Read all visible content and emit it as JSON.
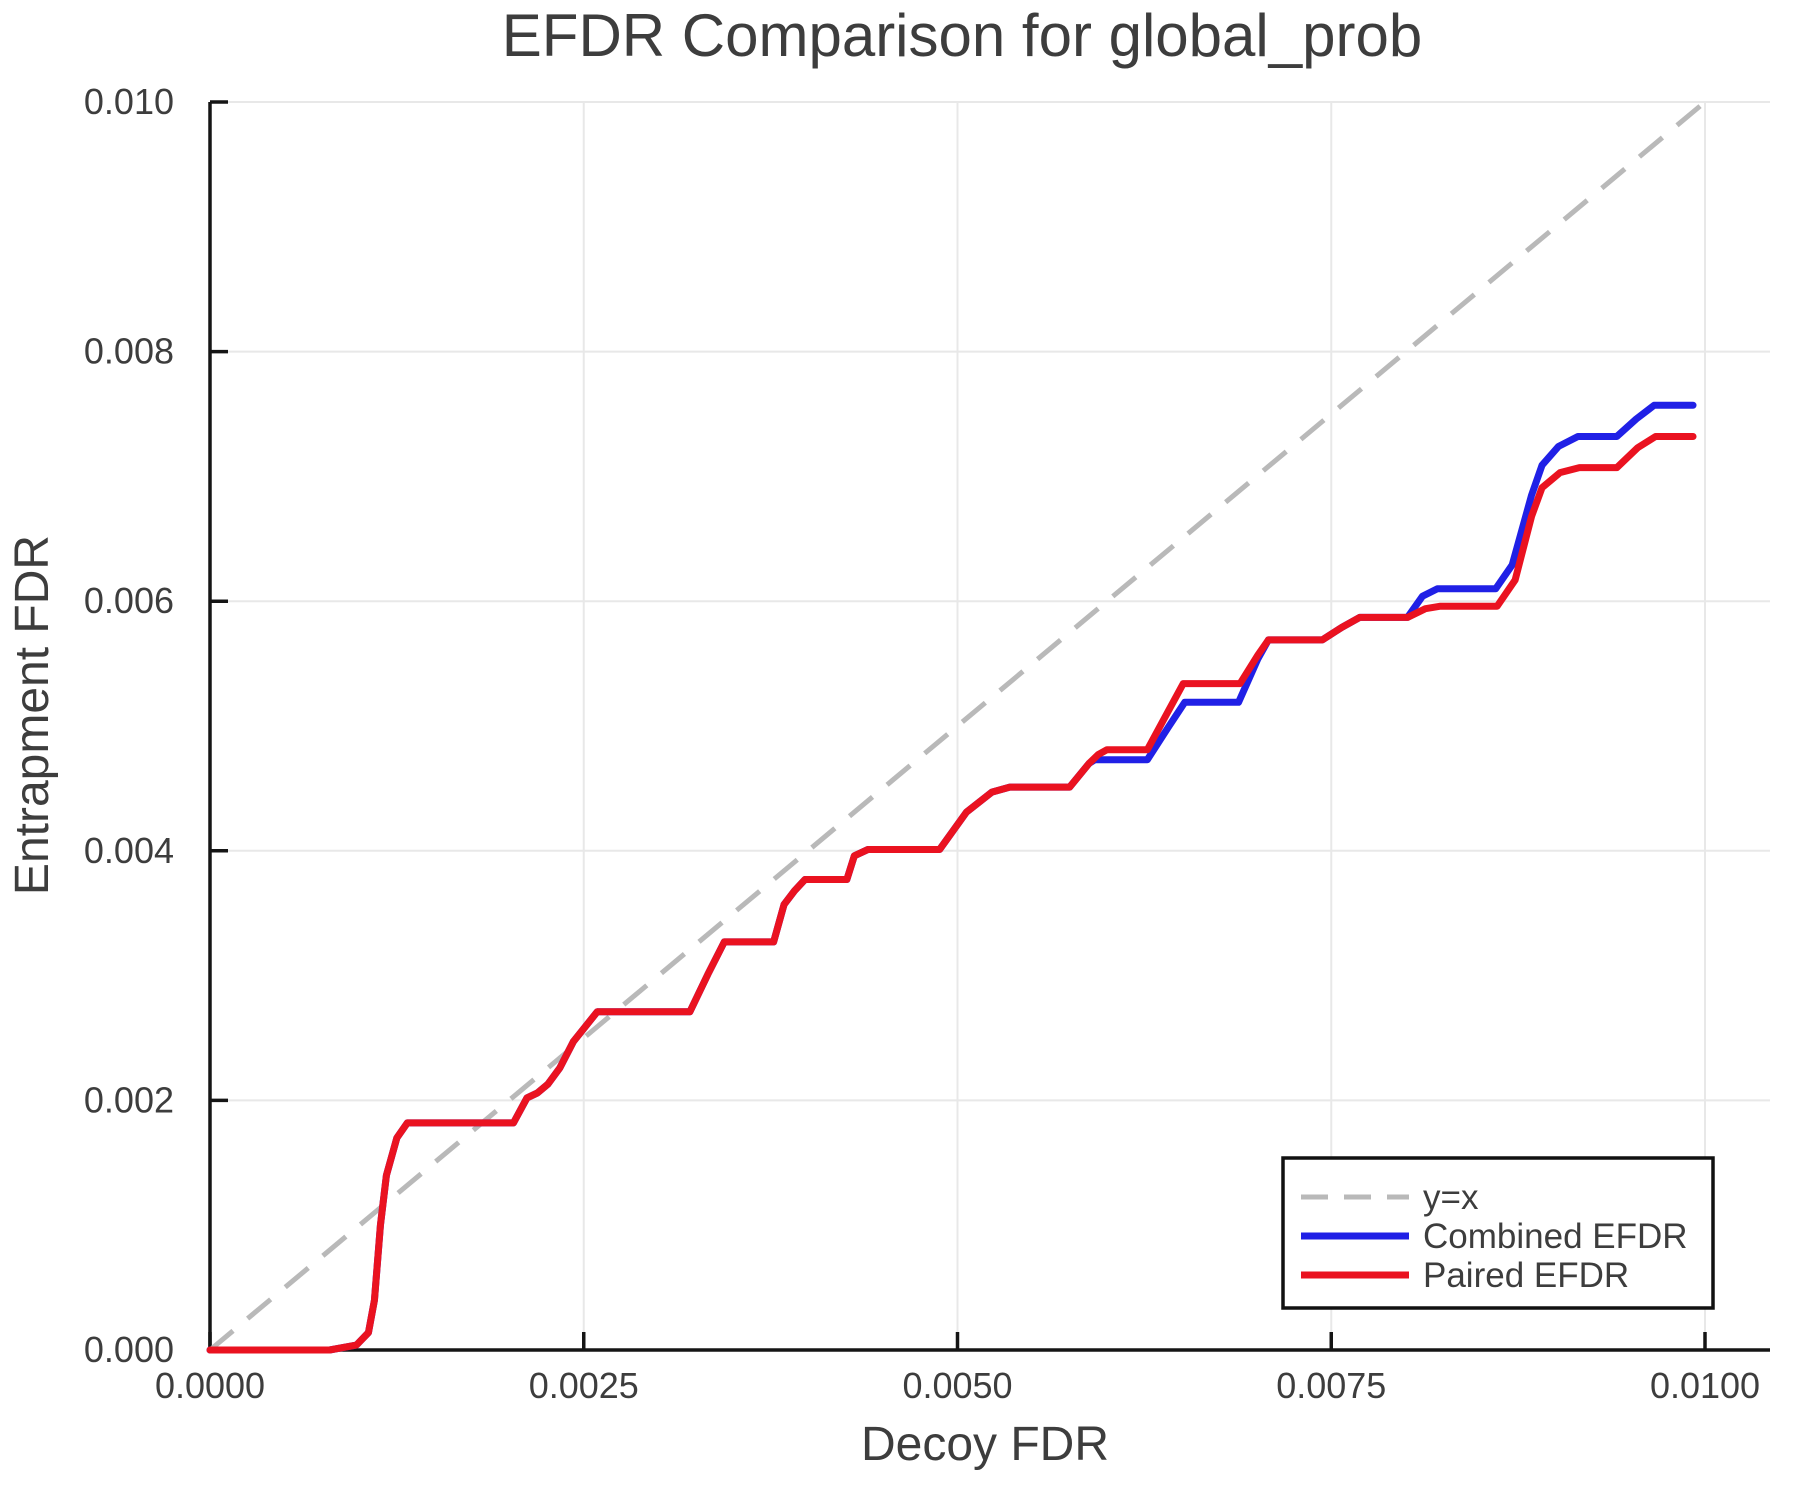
{
  "chart_data": {
    "type": "line",
    "title": "EFDR Comparison for global_prob",
    "xlabel": "Decoy FDR",
    "ylabel": "Entrapment FDR",
    "xlim": [
      0.0,
      0.01
    ],
    "ylim": [
      0.0,
      0.01
    ],
    "grid": true,
    "grid_color": "#e8e8e8",
    "spine_color": "#151515",
    "text_color": "#3d3d3d",
    "xticks": [
      {
        "value": 0.0,
        "label": "0.0000"
      },
      {
        "value": 0.0025,
        "label": "0.0025"
      },
      {
        "value": 0.005,
        "label": "0.0050"
      },
      {
        "value": 0.0075,
        "label": "0.0075"
      },
      {
        "value": 0.01,
        "label": "0.0100"
      }
    ],
    "yticks": [
      {
        "value": 0.0,
        "label": "0.000"
      },
      {
        "value": 0.002,
        "label": "0.002"
      },
      {
        "value": 0.004,
        "label": "0.004"
      },
      {
        "value": 0.006,
        "label": "0.006"
      },
      {
        "value": 0.008,
        "label": "0.008"
      },
      {
        "value": 0.01,
        "label": "0.010"
      }
    ],
    "legend": {
      "position": "lower right",
      "entries": [
        {
          "series": "identity",
          "label": "y=x"
        },
        {
          "series": "combined",
          "label": "Combined EFDR"
        },
        {
          "series": "paired",
          "label": "Paired EFDR"
        }
      ]
    },
    "series": [
      {
        "name": "identity",
        "label": "y=x",
        "style": "dashed",
        "color": "#b9b9b9",
        "width": 5,
        "points": [
          [
            0.0,
            0.0
          ],
          [
            0.01,
            0.01
          ]
        ]
      },
      {
        "name": "combined",
        "label": "Combined EFDR",
        "style": "solid",
        "color": "#2020e6",
        "width": 7,
        "points": [
          [
            0.0,
            0.0
          ],
          [
            0.0008,
            0.0
          ],
          [
            0.00098,
            4e-05
          ],
          [
            0.00106,
            0.00014
          ],
          [
            0.0011,
            0.0004
          ],
          [
            0.00114,
            0.001
          ],
          [
            0.00118,
            0.0014
          ],
          [
            0.00125,
            0.0017
          ],
          [
            0.00132,
            0.00182
          ],
          [
            0.00203,
            0.00182
          ],
          [
            0.00212,
            0.00202
          ],
          [
            0.00219,
            0.00206
          ],
          [
            0.00226,
            0.00213
          ],
          [
            0.00234,
            0.00226
          ],
          [
            0.00243,
            0.00247
          ],
          [
            0.00259,
            0.00271
          ],
          [
            0.00321,
            0.00271
          ],
          [
            0.00333,
            0.00301
          ],
          [
            0.00344,
            0.00327
          ],
          [
            0.00377,
            0.00327
          ],
          [
            0.00384,
            0.00357
          ],
          [
            0.00391,
            0.00368
          ],
          [
            0.00398,
            0.00377
          ],
          [
            0.00426,
            0.00377
          ],
          [
            0.00431,
            0.00396
          ],
          [
            0.0044,
            0.00401
          ],
          [
            0.00488,
            0.00401
          ],
          [
            0.00506,
            0.00431
          ],
          [
            0.00523,
            0.00447
          ],
          [
            0.00535,
            0.00451
          ],
          [
            0.00575,
            0.00451
          ],
          [
            0.00588,
            0.0047
          ],
          [
            0.00592,
            0.00473
          ],
          [
            0.00627,
            0.00473
          ],
          [
            0.00641,
            0.00499
          ],
          [
            0.00652,
            0.00519
          ],
          [
            0.00688,
            0.00519
          ],
          [
            0.00701,
            0.00554
          ],
          [
            0.00708,
            0.00569
          ],
          [
            0.00744,
            0.00569
          ],
          [
            0.00757,
            0.00579
          ],
          [
            0.00769,
            0.00587
          ],
          [
            0.00801,
            0.00587
          ],
          [
            0.00811,
            0.00604
          ],
          [
            0.00821,
            0.0061
          ],
          [
            0.0086,
            0.0061
          ],
          [
            0.00871,
            0.00629
          ],
          [
            0.00884,
            0.00685
          ],
          [
            0.00891,
            0.00709
          ],
          [
            0.00902,
            0.00724
          ],
          [
            0.00915,
            0.00732
          ],
          [
            0.00941,
            0.00732
          ],
          [
            0.00954,
            0.00746
          ],
          [
            0.00966,
            0.00757
          ],
          [
            0.00992,
            0.00757
          ]
        ]
      },
      {
        "name": "paired",
        "label": "Paired EFDR",
        "style": "solid",
        "color": "#ea1220",
        "width": 7,
        "points": [
          [
            0.0,
            0.0
          ],
          [
            0.0008,
            0.0
          ],
          [
            0.00098,
            4e-05
          ],
          [
            0.00106,
            0.00014
          ],
          [
            0.0011,
            0.0004
          ],
          [
            0.00114,
            0.001
          ],
          [
            0.00118,
            0.0014
          ],
          [
            0.00125,
            0.0017
          ],
          [
            0.00132,
            0.00182
          ],
          [
            0.00203,
            0.00182
          ],
          [
            0.00212,
            0.00202
          ],
          [
            0.00219,
            0.00206
          ],
          [
            0.00226,
            0.00213
          ],
          [
            0.00234,
            0.00226
          ],
          [
            0.00243,
            0.00247
          ],
          [
            0.00259,
            0.00271
          ],
          [
            0.00321,
            0.00271
          ],
          [
            0.00333,
            0.00301
          ],
          [
            0.00344,
            0.00327
          ],
          [
            0.00377,
            0.00327
          ],
          [
            0.00384,
            0.00357
          ],
          [
            0.00391,
            0.00368
          ],
          [
            0.00398,
            0.00377
          ],
          [
            0.00426,
            0.00377
          ],
          [
            0.00431,
            0.00396
          ],
          [
            0.0044,
            0.00401
          ],
          [
            0.00488,
            0.00401
          ],
          [
            0.00506,
            0.00431
          ],
          [
            0.00523,
            0.00447
          ],
          [
            0.00535,
            0.00451
          ],
          [
            0.00575,
            0.00451
          ],
          [
            0.00588,
            0.0047
          ],
          [
            0.00594,
            0.00477
          ],
          [
            0.006,
            0.00481
          ],
          [
            0.00627,
            0.00481
          ],
          [
            0.00641,
            0.00512
          ],
          [
            0.00651,
            0.00534
          ],
          [
            0.00689,
            0.00534
          ],
          [
            0.00701,
            0.00557
          ],
          [
            0.00708,
            0.00569
          ],
          [
            0.00744,
            0.00569
          ],
          [
            0.00757,
            0.00579
          ],
          [
            0.00769,
            0.00587
          ],
          [
            0.00801,
            0.00587
          ],
          [
            0.00813,
            0.00594
          ],
          [
            0.00823,
            0.00596
          ],
          [
            0.00861,
            0.00596
          ],
          [
            0.00873,
            0.00617
          ],
          [
            0.00884,
            0.00668
          ],
          [
            0.00891,
            0.00691
          ],
          [
            0.00903,
            0.00703
          ],
          [
            0.00916,
            0.00707
          ],
          [
            0.00941,
            0.00707
          ],
          [
            0.00955,
            0.00723
          ],
          [
            0.00967,
            0.00732
          ],
          [
            0.00992,
            0.00732
          ]
        ]
      }
    ]
  }
}
